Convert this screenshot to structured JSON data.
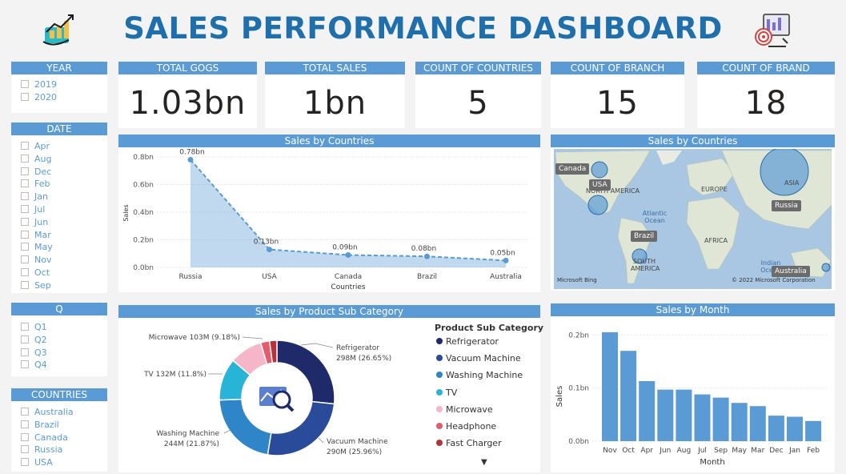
{
  "title": "SALES PERFORMANCE DASHBOARD",
  "icons": {
    "left": "growth-chart-icon",
    "right": "target-analytics-icon"
  },
  "slicers": {
    "year": {
      "header": "YEAR",
      "items": [
        "2019",
        "2020"
      ]
    },
    "date": {
      "header": "DATE",
      "items": [
        "Apr",
        "Aug",
        "Dec",
        "Feb",
        "Jan",
        "Jul",
        "Jun",
        "Mar",
        "May",
        "Nov",
        "Oct",
        "Sep"
      ]
    },
    "q": {
      "header": "Q",
      "items": [
        "Q1",
        "Q2",
        "Q3",
        "Q4"
      ]
    },
    "countries": {
      "header": "COUNTRIES",
      "items": [
        "Australia",
        "Brazil",
        "Canada",
        "Russia",
        "USA"
      ]
    }
  },
  "kpis": [
    {
      "label": "TOTAL GOGS",
      "value": "1.03bn"
    },
    {
      "label": "TOTAL SALES",
      "value": "1bn"
    },
    {
      "label": "COUNT OF COUNTRIES",
      "value": "5"
    },
    {
      "label": "COUNT OF BRANCH",
      "value": "15"
    },
    {
      "label": "COUNT OF BRAND",
      "value": "18"
    }
  ],
  "sales_by_countries_chart": {
    "header": "Sales by Countries",
    "chart_data": {
      "type": "area",
      "categories": [
        "Russia",
        "USA",
        "Canada",
        "Brazil",
        "Australia"
      ],
      "values": [
        0.78,
        0.13,
        0.09,
        0.08,
        0.05
      ],
      "data_labels": [
        "0.78bn",
        "0.13bn",
        "0.09bn",
        "0.08bn",
        "0.05bn"
      ],
      "xlabel": "Countries",
      "ylabel": "Sales",
      "ylim": [
        0,
        0.8
      ],
      "yticks": [
        "0.0bn",
        "0.2bn",
        "0.4bn",
        "0.6bn",
        "0.8bn"
      ]
    },
    "color": "#5b9bd5"
  },
  "map": {
    "header": "Sales by Countries",
    "labels": [
      "Canada",
      "USA",
      "Brazil",
      "Russia",
      "Australia"
    ],
    "geo": [
      "NORTH AMERICA",
      "Atlantic Ocean",
      "EUROPE",
      "ASIA",
      "AFRICA",
      "SOUTH AMERICA",
      "Indian Ocean"
    ],
    "attribution_left": "Microsoft Bing",
    "attribution_right": "© 2022 Microsoft Corporation"
  },
  "donut": {
    "header": "Sales by Product Sub Category",
    "legend_title": "Product Sub Category",
    "chart_data": {
      "type": "pie",
      "slices": [
        {
          "name": "Refrigerator",
          "value": 298,
          "percent": 26.65,
          "color": "#1f2a6b",
          "label": "Refrigerator",
          "sublabel": "298M (26.65%)"
        },
        {
          "name": "Vacuum Machine",
          "value": 290,
          "percent": 25.96,
          "color": "#2a4a9a",
          "label": "Vacuum Machine",
          "sublabel": "290M (25.96%)"
        },
        {
          "name": "Washing Machine",
          "value": 244,
          "percent": 21.87,
          "color": "#2e86c8",
          "label": "Washing Machine",
          "sublabel": "244M (21.87%)"
        },
        {
          "name": "TV",
          "value": 132,
          "percent": 11.8,
          "color": "#27b4d6",
          "label": "TV 132M (11.8%)"
        },
        {
          "name": "Microwave",
          "value": 103,
          "percent": 9.18,
          "color": "#f4b6c8",
          "label": "Microwave 103M (9.18%)"
        },
        {
          "name": "Headphone",
          "value": 28,
          "percent": 2.5,
          "color": "#e65a6e"
        },
        {
          "name": "Fast Charger",
          "value": 23,
          "percent": 2.04,
          "color": "#b7333a"
        }
      ]
    }
  },
  "sales_by_month": {
    "header": "Sales by Month",
    "chart_data": {
      "type": "bar",
      "categories": [
        "Nov",
        "Oct",
        "Apr",
        "Jun",
        "Aug",
        "Jul",
        "Sep",
        "May",
        "Mar",
        "Dec",
        "Jan",
        "Feb"
      ],
      "values": [
        0.205,
        0.17,
        0.113,
        0.097,
        0.097,
        0.088,
        0.082,
        0.072,
        0.066,
        0.048,
        0.046,
        0.038
      ],
      "xlabel": "Month",
      "ylabel": "Sales",
      "ylim": [
        0,
        0.22
      ],
      "yticks": [
        "0.0bn",
        "0.1bn",
        "0.2bn"
      ]
    },
    "color": "#5b9bd5"
  }
}
